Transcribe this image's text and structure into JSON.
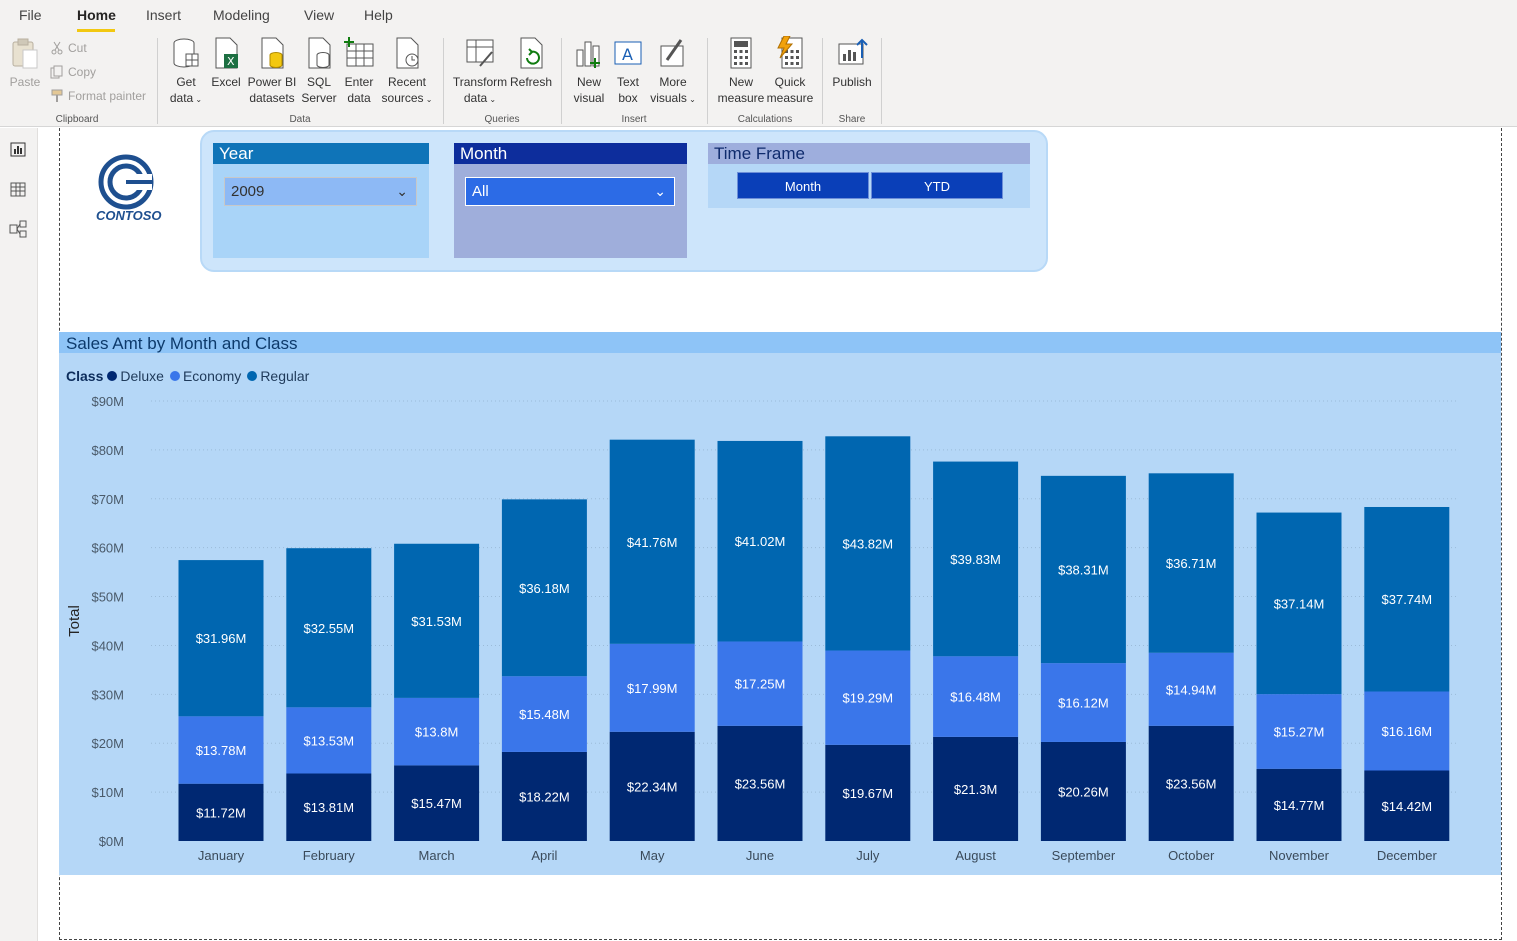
{
  "menu": {
    "tabs": [
      "File",
      "Home",
      "Insert",
      "Modeling",
      "View",
      "Help"
    ],
    "active": "Home"
  },
  "ribbon": {
    "clipboard": {
      "paste": "Paste",
      "cut": "Cut",
      "copy": "Copy",
      "format_painter": "Format painter",
      "group": "Clipboard"
    },
    "data": {
      "get_data": [
        "Get",
        "data"
      ],
      "excel": "Excel",
      "powerbi": [
        "Power BI",
        "datasets"
      ],
      "sql": [
        "SQL",
        "Server"
      ],
      "enter": [
        "Enter",
        "data"
      ],
      "recent": [
        "Recent",
        "sources"
      ],
      "group": "Data"
    },
    "queries": {
      "transform": [
        "Transform",
        "data"
      ],
      "refresh": "Refresh",
      "group": "Queries"
    },
    "insert": {
      "new_visual": [
        "New",
        "visual"
      ],
      "text_box": [
        "Text",
        "box"
      ],
      "more_visuals": [
        "More",
        "visuals"
      ],
      "group": "Insert"
    },
    "calculations": {
      "new_measure": [
        "New",
        "measure"
      ],
      "quick_measure": [
        "Quick",
        "measure"
      ],
      "group": "Calculations"
    },
    "share": {
      "publish": "Publish",
      "group": "Share"
    }
  },
  "logo": {
    "text": "CONTOSO"
  },
  "slicers": {
    "year": {
      "title": "Year",
      "value": "2009"
    },
    "month": {
      "title": "Month",
      "value": "All"
    },
    "time_frame": {
      "title": "Time Frame",
      "options": [
        "Month",
        "YTD"
      ]
    }
  },
  "colors": {
    "deluxe": "#002872",
    "economy": "#3a76ea",
    "regular": "#0066b0",
    "accent": "#f2c811"
  },
  "chart_data": {
    "type": "bar",
    "stacked": true,
    "title": "Sales Amt by Month and Class",
    "legend_title": "Class",
    "ylabel": "Total",
    "xlabel": "",
    "ylim": [
      0,
      90
    ],
    "yticks": [
      "$0M",
      "$10M",
      "$20M",
      "$30M",
      "$40M",
      "$50M",
      "$60M",
      "$70M",
      "$80M",
      "$90M"
    ],
    "categories": [
      "January",
      "February",
      "March",
      "April",
      "May",
      "June",
      "July",
      "August",
      "September",
      "October",
      "November",
      "December"
    ],
    "series": [
      {
        "name": "Deluxe",
        "values": [
          11.72,
          13.81,
          15.47,
          18.22,
          22.34,
          23.56,
          19.67,
          21.3,
          20.26,
          23.56,
          14.77,
          14.42
        ],
        "labels": [
          "$11.72M",
          "$13.81M",
          "$15.47M",
          "$18.22M",
          "$22.34M",
          "$23.56M",
          "$19.67M",
          "$21.3M",
          "$20.26M",
          "$23.56M",
          "$14.77M",
          "$14.42M"
        ]
      },
      {
        "name": "Economy",
        "values": [
          13.78,
          13.53,
          13.8,
          15.48,
          17.99,
          17.25,
          19.29,
          16.48,
          16.12,
          14.94,
          15.27,
          16.16
        ],
        "labels": [
          "$13.78M",
          "$13.53M",
          "$13.8M",
          "$15.48M",
          "$17.99M",
          "$17.25M",
          "$19.29M",
          "$16.48M",
          "$16.12M",
          "$14.94M",
          "$15.27M",
          "$16.16M"
        ]
      },
      {
        "name": "Regular",
        "values": [
          31.96,
          32.55,
          31.53,
          36.18,
          41.76,
          41.02,
          43.82,
          39.83,
          38.31,
          36.71,
          37.14,
          37.74
        ],
        "labels": [
          "$31.96M",
          "$32.55M",
          "$31.53M",
          "$36.18M",
          "$41.76M",
          "$41.02M",
          "$43.82M",
          "$39.83M",
          "$38.31M",
          "$36.71M",
          "$37.14M",
          "$37.74M"
        ]
      }
    ],
    "grid": true,
    "legend_position": "top-left"
  }
}
